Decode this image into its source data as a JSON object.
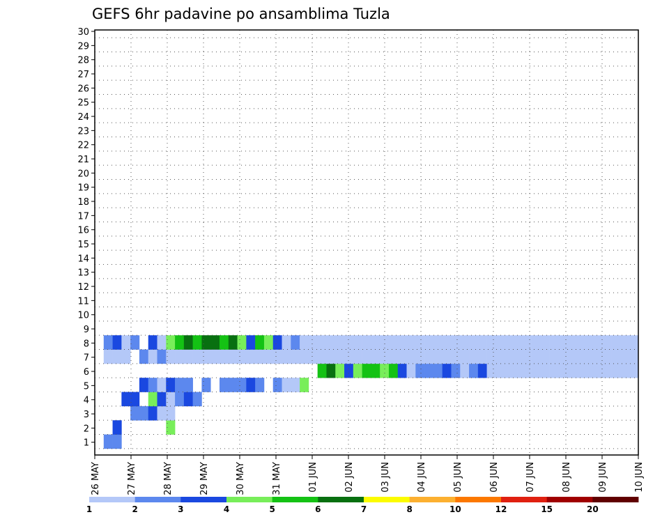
{
  "chart_data": {
    "type": "heatmap",
    "title": "GEFS 6hr padavine po ansamblima Tuzla",
    "x_tick_labels": [
      "26 MAY",
      "27 MAY",
      "28 MAY",
      "29 MAY",
      "30 MAY",
      "31 MAY",
      "01 JUN",
      "02 JUN",
      "03 JUN",
      "04 JUN",
      "05 JUN",
      "06 JUN",
      "07 JUN",
      "08 JUN",
      "09 JUN",
      "10 JUN"
    ],
    "y_tick_labels": [
      "1",
      "2",
      "3",
      "4",
      "5",
      "6",
      "7",
      "8",
      "9",
      "10",
      "11",
      "12",
      "13",
      "14",
      "15",
      "16",
      "17",
      "18",
      "19",
      "20",
      "21",
      "22",
      "23",
      "24",
      "25",
      "26",
      "27",
      "28",
      "29",
      "30"
    ],
    "legend": {
      "labels": [
        "1",
        "2",
        "3",
        "4",
        "5",
        "6",
        "7",
        "8",
        "10",
        "12",
        "15",
        "20"
      ],
      "colors": [
        "#b4c8f8",
        "#5c88ee",
        "#1a48e0",
        "#78ee5a",
        "#14c214",
        "#087010",
        "#fcfc00",
        "#fcb030",
        "#fc7800",
        "#e02010",
        "#a00000",
        "#600000"
      ]
    },
    "x_range_steps": [
      0,
      61
    ],
    "y_range_members": [
      0,
      30
    ],
    "grid": true,
    "cells": [
      [
        1,
        0,
        2
      ],
      [
        2,
        0,
        2
      ],
      [
        2,
        1,
        3
      ],
      [
        8,
        1,
        4
      ],
      [
        4,
        2,
        2
      ],
      [
        5,
        2,
        2
      ],
      [
        6,
        2,
        3
      ],
      [
        7,
        2,
        1
      ],
      [
        8,
        2,
        1
      ],
      [
        3,
        3,
        3
      ],
      [
        4,
        3,
        3
      ],
      [
        6,
        3,
        4
      ],
      [
        7,
        3,
        3
      ],
      [
        8,
        3,
        1
      ],
      [
        9,
        3,
        2
      ],
      [
        10,
        3,
        3
      ],
      [
        11,
        3,
        2
      ],
      [
        5,
        4,
        3
      ],
      [
        6,
        4,
        2
      ],
      [
        7,
        4,
        1
      ],
      [
        8,
        4,
        3
      ],
      [
        9,
        4,
        2
      ],
      [
        10,
        4,
        2
      ],
      [
        12,
        4,
        2
      ],
      [
        14,
        4,
        2
      ],
      [
        15,
        4,
        2
      ],
      [
        16,
        4,
        2
      ],
      [
        17,
        4,
        3
      ],
      [
        18,
        4,
        2
      ],
      [
        20,
        4,
        2
      ],
      [
        21,
        4,
        1
      ],
      [
        22,
        4,
        1
      ],
      [
        23,
        4,
        4
      ],
      [
        25,
        5,
        5
      ],
      [
        26,
        5,
        6
      ],
      [
        27,
        5,
        4
      ],
      [
        28,
        5,
        3
      ],
      [
        29,
        5,
        4
      ],
      [
        30,
        5,
        5
      ],
      [
        31,
        5,
        5
      ],
      [
        32,
        5,
        4
      ],
      [
        33,
        5,
        5
      ],
      [
        34,
        5,
        3
      ],
      [
        35,
        5,
        1
      ],
      [
        36,
        5,
        2
      ],
      [
        37,
        5,
        2
      ],
      [
        38,
        5,
        2
      ],
      [
        39,
        5,
        3
      ],
      [
        40,
        5,
        2
      ],
      [
        41,
        5,
        1
      ],
      [
        42,
        5,
        2
      ],
      [
        43,
        5,
        3
      ],
      [
        44,
        5,
        1
      ],
      [
        45,
        5,
        1
      ],
      [
        46,
        5,
        1
      ],
      [
        47,
        5,
        1
      ],
      [
        48,
        5,
        1
      ],
      [
        49,
        5,
        1
      ],
      [
        50,
        5,
        1
      ],
      [
        51,
        5,
        1
      ],
      [
        52,
        5,
        1
      ],
      [
        53,
        5,
        1
      ],
      [
        54,
        5,
        1
      ],
      [
        55,
        5,
        1
      ],
      [
        56,
        5,
        1
      ],
      [
        57,
        5,
        1
      ],
      [
        58,
        5,
        1
      ],
      [
        59,
        5,
        1
      ],
      [
        60,
        5,
        1
      ],
      [
        1,
        6,
        1
      ],
      [
        2,
        6,
        1
      ],
      [
        3,
        6,
        1
      ],
      [
        5,
        6,
        2
      ],
      [
        6,
        6,
        1
      ],
      [
        7,
        6,
        2
      ],
      [
        8,
        6,
        1
      ],
      [
        9,
        6,
        1
      ],
      [
        10,
        6,
        1
      ],
      [
        11,
        6,
        1
      ],
      [
        12,
        6,
        1
      ],
      [
        13,
        6,
        1
      ],
      [
        14,
        6,
        1
      ],
      [
        15,
        6,
        1
      ],
      [
        16,
        6,
        1
      ],
      [
        17,
        6,
        1
      ],
      [
        18,
        6,
        1
      ],
      [
        19,
        6,
        1
      ],
      [
        20,
        6,
        1
      ],
      [
        21,
        6,
        1
      ],
      [
        22,
        6,
        1
      ],
      [
        23,
        6,
        1
      ],
      [
        24,
        6,
        1
      ],
      [
        25,
        6,
        1
      ],
      [
        26,
        6,
        1
      ],
      [
        27,
        6,
        1
      ],
      [
        28,
        6,
        1
      ],
      [
        29,
        6,
        1
      ],
      [
        30,
        6,
        1
      ],
      [
        31,
        6,
        1
      ],
      [
        32,
        6,
        1
      ],
      [
        33,
        6,
        1
      ],
      [
        34,
        6,
        1
      ],
      [
        35,
        6,
        1
      ],
      [
        36,
        6,
        1
      ],
      [
        37,
        6,
        1
      ],
      [
        38,
        6,
        1
      ],
      [
        39,
        6,
        1
      ],
      [
        40,
        6,
        1
      ],
      [
        41,
        6,
        1
      ],
      [
        42,
        6,
        1
      ],
      [
        43,
        6,
        1
      ],
      [
        44,
        6,
        1
      ],
      [
        45,
        6,
        1
      ],
      [
        46,
        6,
        1
      ],
      [
        47,
        6,
        1
      ],
      [
        48,
        6,
        1
      ],
      [
        49,
        6,
        1
      ],
      [
        50,
        6,
        1
      ],
      [
        51,
        6,
        1
      ],
      [
        52,
        6,
        1
      ],
      [
        53,
        6,
        1
      ],
      [
        54,
        6,
        1
      ],
      [
        55,
        6,
        1
      ],
      [
        56,
        6,
        1
      ],
      [
        57,
        6,
        1
      ],
      [
        58,
        6,
        1
      ],
      [
        59,
        6,
        1
      ],
      [
        60,
        6,
        1
      ],
      [
        1,
        7,
        2
      ],
      [
        2,
        7,
        3
      ],
      [
        3,
        7,
        1
      ],
      [
        4,
        7,
        2
      ],
      [
        6,
        7,
        3
      ],
      [
        7,
        7,
        1
      ],
      [
        8,
        7,
        4
      ],
      [
        9,
        7,
        5
      ],
      [
        10,
        7,
        6
      ],
      [
        11,
        7,
        5
      ],
      [
        12,
        7,
        6
      ],
      [
        13,
        7,
        6
      ],
      [
        14,
        7,
        5
      ],
      [
        15,
        7,
        6
      ],
      [
        16,
        7,
        4
      ],
      [
        17,
        7,
        3
      ],
      [
        18,
        7,
        5
      ],
      [
        19,
        7,
        4
      ],
      [
        20,
        7,
        3
      ],
      [
        21,
        7,
        1
      ],
      [
        22,
        7,
        2
      ],
      [
        23,
        7,
        1
      ],
      [
        24,
        7,
        1
      ],
      [
        25,
        7,
        1
      ],
      [
        26,
        7,
        1
      ],
      [
        27,
        7,
        1
      ],
      [
        28,
        7,
        1
      ],
      [
        29,
        7,
        1
      ],
      [
        30,
        7,
        1
      ],
      [
        31,
        7,
        1
      ],
      [
        32,
        7,
        1
      ],
      [
        33,
        7,
        1
      ],
      [
        34,
        7,
        1
      ],
      [
        35,
        7,
        1
      ],
      [
        36,
        7,
        1
      ],
      [
        37,
        7,
        1
      ],
      [
        38,
        7,
        1
      ],
      [
        39,
        7,
        1
      ],
      [
        40,
        7,
        1
      ],
      [
        41,
        7,
        1
      ],
      [
        42,
        7,
        1
      ],
      [
        43,
        7,
        1
      ],
      [
        44,
        7,
        1
      ],
      [
        45,
        7,
        1
      ],
      [
        46,
        7,
        1
      ],
      [
        47,
        7,
        1
      ],
      [
        48,
        7,
        1
      ],
      [
        49,
        7,
        1
      ],
      [
        50,
        7,
        1
      ],
      [
        51,
        7,
        1
      ],
      [
        52,
        7,
        1
      ],
      [
        53,
        7,
        1
      ],
      [
        54,
        7,
        1
      ],
      [
        55,
        7,
        1
      ],
      [
        56,
        7,
        1
      ],
      [
        57,
        7,
        1
      ],
      [
        58,
        7,
        1
      ],
      [
        59,
        7,
        1
      ],
      [
        60,
        7,
        1
      ]
    ],
    "cells_note": ""
  }
}
